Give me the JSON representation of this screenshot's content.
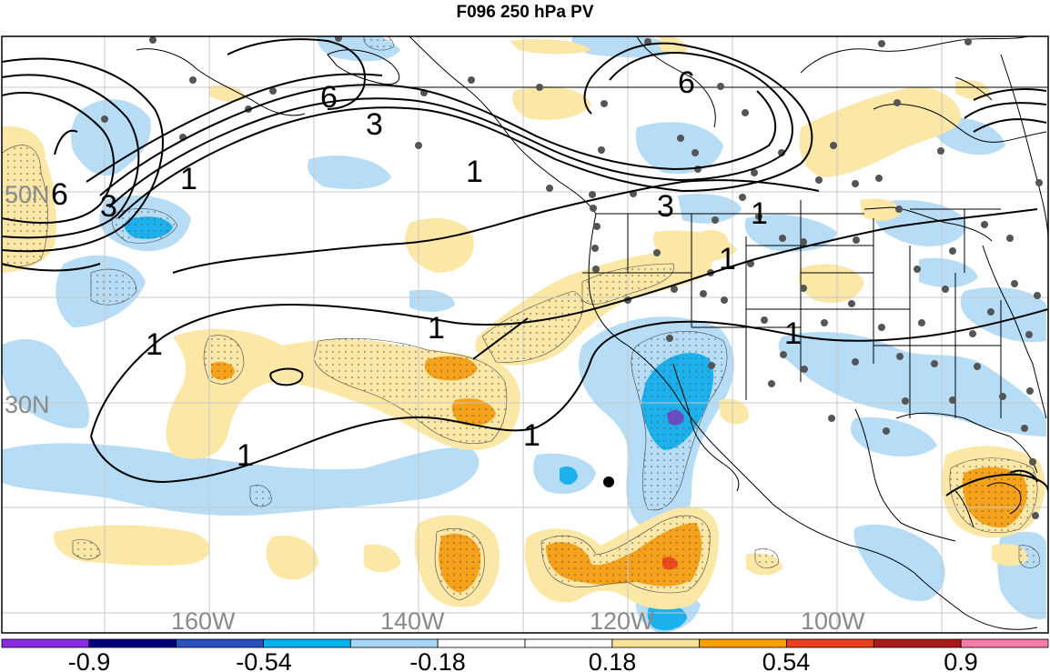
{
  "title": "F096 250 hPa PV",
  "map": {
    "lat_labels": [
      "50N",
      "30N"
    ],
    "lon_labels": [
      "160W",
      "140W",
      "120W",
      "100W"
    ],
    "contour_labels": [
      "6",
      "3",
      "1",
      "6",
      "3",
      "1",
      "3",
      "1",
      "6",
      "1",
      "1",
      "1",
      "1",
      "1",
      "1"
    ]
  },
  "colorbar": {
    "tick_labels": [
      "-0.9",
      "-0.54",
      "-0.18",
      "0.18",
      "0.54",
      "0.9"
    ],
    "colors": [
      "#8a2be2",
      "#00007f",
      "#2a52be",
      "#00b2ee",
      "#a6d8f5",
      "#ffffff",
      "#ffffff",
      "#f9e39a",
      "#f7a000",
      "#e8401c",
      "#aa1a1a",
      "#f47ca9"
    ]
  },
  "colors": {
    "light_blue": "#b6dcf6",
    "blue": "#1cb0ec",
    "purple": "#6a4bc4",
    "light_yellow": "#fbe7a6",
    "orange": "#f6a11a",
    "red_orange": "#ee4a1e",
    "station_dot": "#555555",
    "grid": "#c8c8c8"
  }
}
